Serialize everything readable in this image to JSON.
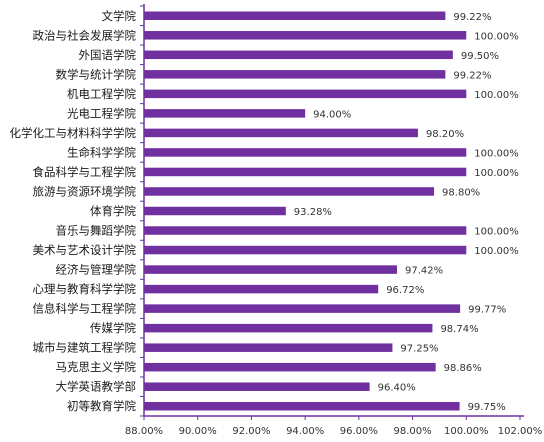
{
  "chart_data": {
    "type": "bar",
    "orientation": "horizontal",
    "categories": [
      "文学院",
      "政治与社会发展学院",
      "外国语学院",
      "数学与统计学院",
      "机电工程学院",
      "光电工程学院",
      "化学化工与材料科学学院",
      "生命科学学院",
      "食品科学与工程学院",
      "旅游与资源环境学院",
      "体育学院",
      "音乐与舞蹈学院",
      "美术与艺术设计学院",
      "经济与管理学院",
      "心理与教育科学学院",
      "信息科学与工程学院",
      "传媒学院",
      "城市与建筑工程学院",
      "马克思主义学院",
      "大学英语教学部",
      "初等教育学院"
    ],
    "values": [
      99.22,
      100.0,
      99.5,
      99.22,
      100.0,
      94.0,
      98.2,
      100.0,
      100.0,
      98.8,
      93.28,
      100.0,
      100.0,
      97.42,
      96.72,
      99.77,
      98.74,
      97.25,
      98.86,
      96.4,
      99.75
    ],
    "value_labels": [
      "99.22%",
      "100.00%",
      "99.50%",
      "99.22%",
      "100.00%",
      "94.00%",
      "98.20%",
      "100.00%",
      "100.00%",
      "98.80%",
      "93.28%",
      "100.00%",
      "100.00%",
      "97.42%",
      "96.72%",
      "99.77%",
      "98.74%",
      "97.25%",
      "98.86%",
      "96.40%",
      "99.75%"
    ],
    "xlim": [
      88,
      102
    ],
    "xticks": [
      "88.00%",
      "90.00%",
      "92.00%",
      "94.00%",
      "96.00%",
      "98.00%",
      "100.00%",
      "102.00%"
    ],
    "title": "",
    "xlabel": "",
    "ylabel": "",
    "grid": false,
    "bar_color": "#7030a0",
    "axis_color": "#7030a0"
  }
}
